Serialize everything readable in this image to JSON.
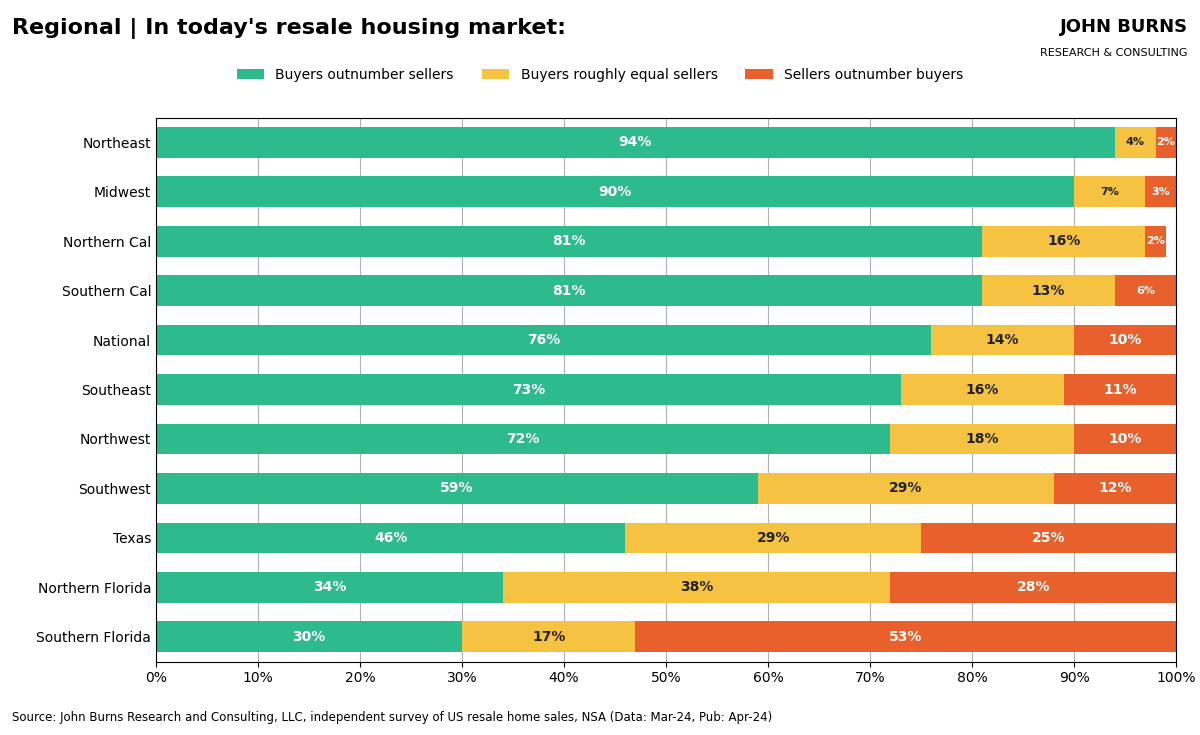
{
  "chart_data": {
    "type": "bar",
    "orientation": "horizontal",
    "stacked": true,
    "data_labels": true,
    "grid": true,
    "legend": "upper center",
    "title": "Regional | In today's resale housing market:",
    "categories": [
      "Northeast",
      "Midwest",
      "Northern Cal",
      "Southern Cal",
      "National",
      "Southeast",
      "Northwest",
      "Southwest",
      "Texas",
      "Northern Florida",
      "Southern Florida"
    ],
    "series": [
      {
        "name": "Buyers outnumber sellers",
        "color": "#2dba8c",
        "values": [
          94,
          90,
          81,
          81,
          76,
          73,
          72,
          59,
          46,
          34,
          30
        ],
        "value_labels": [
          "94%",
          "90%",
          "81%",
          "81%",
          "76%",
          "73%",
          "72%",
          "59%",
          "46%",
          "34%",
          "30%"
        ]
      },
      {
        "name": "Buyers roughly equal sellers",
        "color": "#f5c242",
        "values": [
          4,
          7,
          16,
          13,
          14,
          16,
          18,
          29,
          29,
          38,
          17
        ],
        "value_labels": [
          "4%",
          "7%",
          "16%",
          "13%",
          "14%",
          "16%",
          "18%",
          "29%",
          "29%",
          "38%",
          "17%"
        ]
      },
      {
        "name": "Sellers outnumber buyers",
        "color": "#e8602c",
        "values": [
          2,
          3,
          2,
          6,
          10,
          11,
          10,
          12,
          25,
          28,
          53
        ],
        "value_labels": [
          "2%",
          "3%",
          "2%",
          "6%",
          "10%",
          "11%",
          "10%",
          "12%",
          "25%",
          "28%",
          "53%"
        ]
      }
    ],
    "xlim": [
      0,
      100
    ],
    "xticks": [
      {
        "value": 0,
        "label": "0%"
      },
      {
        "value": 10,
        "label": "10%"
      },
      {
        "value": 20,
        "label": "20%"
      },
      {
        "value": 30,
        "label": "30%"
      },
      {
        "value": 40,
        "label": "40%"
      },
      {
        "value": 50,
        "label": "50%"
      },
      {
        "value": 60,
        "label": "60%"
      },
      {
        "value": 70,
        "label": "70%"
      },
      {
        "value": 80,
        "label": "80%"
      },
      {
        "value": 90,
        "label": "90%"
      },
      {
        "value": 100,
        "label": "100%"
      }
    ],
    "annotations": [
      "Source: John Burns Research and Consulting, LLC, independent survey of US resale home sales, NSA (Data: Mar-24, Pub: Apr-24)",
      "JOHN BURNS",
      "RESEARCH & CONSULTING"
    ]
  }
}
